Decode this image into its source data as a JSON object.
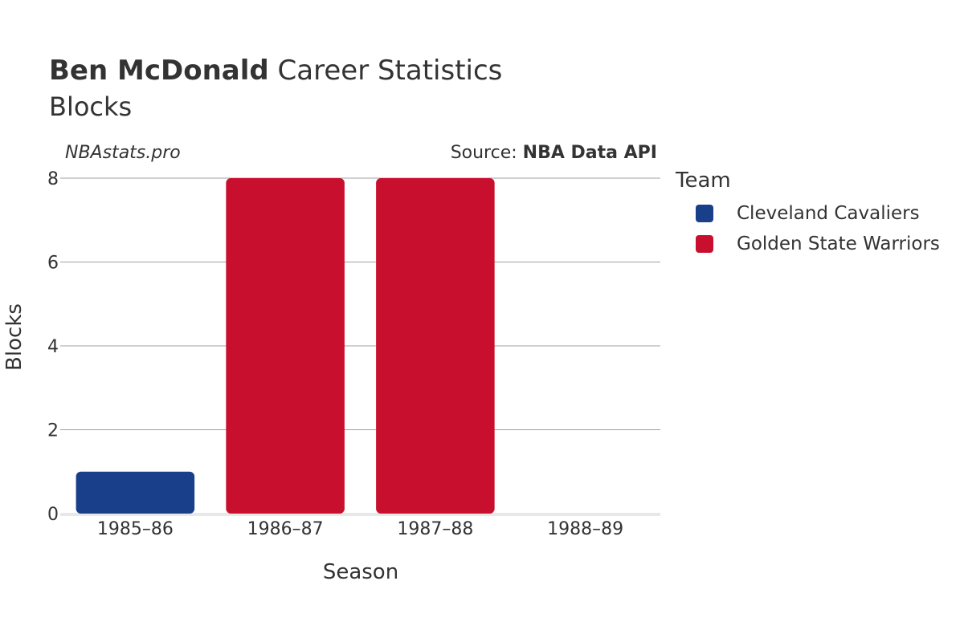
{
  "header": {
    "player_name": "Ben McDonald",
    "title_rest": "Career Statistics",
    "subtitle": "Blocks",
    "watermark": "NBAstats.pro",
    "source_label": "Source: ",
    "source_name": "NBA Data API"
  },
  "legend": {
    "title": "Team",
    "items": [
      {
        "label": "Cleveland Cavaliers",
        "color": "#1a3f8a"
      },
      {
        "label": "Golden State Warriors",
        "color": "#c8102e"
      }
    ]
  },
  "chart_data": {
    "type": "bar",
    "title": "Ben McDonald Career Statistics",
    "subtitle": "Blocks",
    "xlabel": "Season",
    "ylabel": "Blocks",
    "ylim": [
      0,
      8
    ],
    "yticks": [
      0,
      2,
      4,
      6,
      8
    ],
    "categories": [
      "1985–86",
      "1986–87",
      "1987–88",
      "1988–89"
    ],
    "bars": [
      {
        "category": "1985–86",
        "team": "Cleveland Cavaliers",
        "value": 1
      },
      {
        "category": "1986–87",
        "team": "Golden State Warriors",
        "value": 8
      },
      {
        "category": "1987–88",
        "team": "Golden State Warriors",
        "value": 8
      },
      {
        "category": "1988–89",
        "team": "Golden State Warriors",
        "value": 0
      }
    ],
    "grid": true,
    "legend_position": "right"
  }
}
